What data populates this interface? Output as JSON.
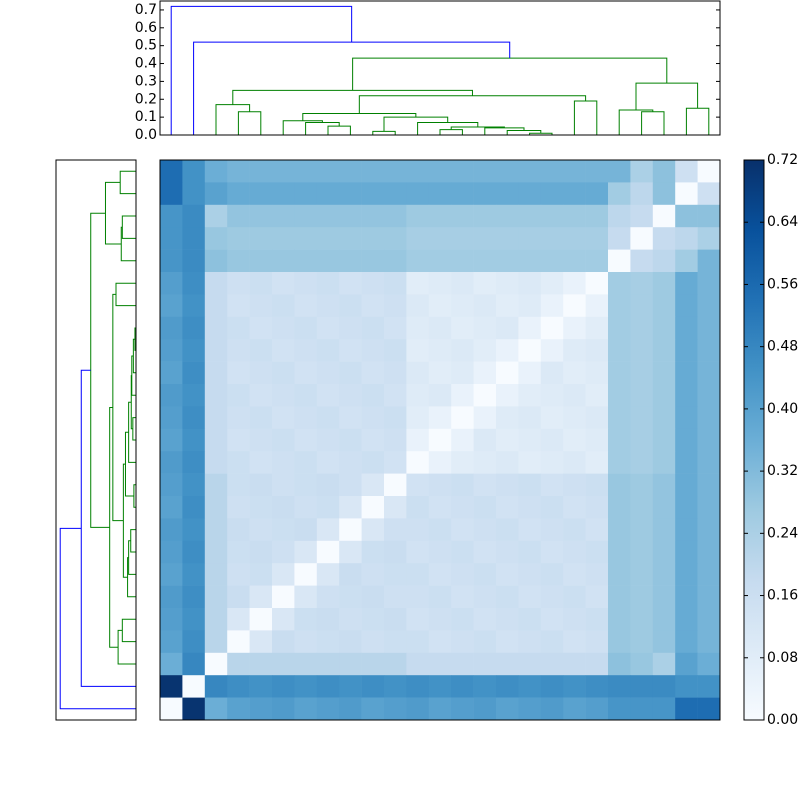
{
  "chart_data": {
    "type": "clustermap",
    "colormap": "Blues",
    "clim": [
      0,
      0.72
    ],
    "cticks": [
      {
        "value": 0,
        "label": "0.00"
      },
      0.08,
      0.16,
      0.24,
      0.32,
      {
        "value": 0.4,
        "label": "0.40"
      },
      0.48,
      0.56,
      0.64,
      0.72
    ],
    "z": [
      [
        0.55,
        0.45,
        0.36,
        0.34,
        0.34,
        0.34,
        0.34,
        0.34,
        0.34,
        0.34,
        0.34,
        0.34,
        0.34,
        0.34,
        0.34,
        0.34,
        0.34,
        0.34,
        0.34,
        0.34,
        0.34,
        0.24,
        0.3,
        0.15,
        0
      ],
      [
        0.55,
        0.45,
        0.4,
        0.37,
        0.37,
        0.37,
        0.37,
        0.37,
        0.37,
        0.37,
        0.37,
        0.37,
        0.37,
        0.37,
        0.37,
        0.37,
        0.37,
        0.37,
        0.37,
        0.37,
        0.26,
        0.2,
        0.3,
        0,
        0.15
      ],
      [
        0.44,
        0.47,
        0.24,
        0.29,
        0.29,
        0.29,
        0.29,
        0.29,
        0.29,
        0.29,
        0.29,
        0.27,
        0.27,
        0.27,
        0.27,
        0.27,
        0.27,
        0.27,
        0.27,
        0.27,
        0.2,
        0.18,
        0,
        0.3,
        0.3
      ],
      [
        0.44,
        0.47,
        0.28,
        0.27,
        0.27,
        0.27,
        0.27,
        0.27,
        0.27,
        0.27,
        0.27,
        0.25,
        0.25,
        0.25,
        0.25,
        0.25,
        0.25,
        0.25,
        0.25,
        0.25,
        0.18,
        0,
        0.18,
        0.2,
        0.24
      ],
      [
        0.44,
        0.47,
        0.3,
        0.28,
        0.28,
        0.28,
        0.28,
        0.28,
        0.28,
        0.28,
        0.28,
        0.26,
        0.26,
        0.26,
        0.26,
        0.26,
        0.26,
        0.26,
        0.26,
        0.26,
        0,
        0.18,
        0.2,
        0.26,
        0.34
      ],
      [
        0.41,
        0.46,
        0.18,
        0.15,
        0.16,
        0.14,
        0.15,
        0.16,
        0.14,
        0.15,
        0.16,
        0.08,
        0.09,
        0.1,
        0.08,
        0.09,
        0.1,
        0.08,
        0.05,
        0,
        0.26,
        0.25,
        0.27,
        0.37,
        0.34
      ],
      [
        0.4,
        0.45,
        0.18,
        0.14,
        0.15,
        0.16,
        0.14,
        0.15,
        0.16,
        0.14,
        0.15,
        0.1,
        0.08,
        0.09,
        0.1,
        0.08,
        0.09,
        0.05,
        0,
        0.05,
        0.26,
        0.25,
        0.27,
        0.37,
        0.34
      ],
      [
        0.42,
        0.46,
        0.18,
        0.16,
        0.14,
        0.15,
        0.16,
        0.14,
        0.15,
        0.16,
        0.14,
        0.09,
        0.1,
        0.08,
        0.09,
        0.1,
        0.05,
        0,
        0.05,
        0.08,
        0.26,
        0.25,
        0.27,
        0.37,
        0.34
      ],
      [
        0.41,
        0.45,
        0.18,
        0.15,
        0.16,
        0.14,
        0.15,
        0.16,
        0.14,
        0.15,
        0.16,
        0.08,
        0.09,
        0.1,
        0.08,
        0.05,
        0,
        0.05,
        0.09,
        0.1,
        0.26,
        0.25,
        0.27,
        0.37,
        0.34
      ],
      [
        0.4,
        0.46,
        0.18,
        0.14,
        0.15,
        0.16,
        0.14,
        0.15,
        0.16,
        0.14,
        0.15,
        0.1,
        0.08,
        0.09,
        0.05,
        0,
        0.05,
        0.1,
        0.08,
        0.09,
        0.26,
        0.25,
        0.27,
        0.37,
        0.34
      ],
      [
        0.42,
        0.45,
        0.18,
        0.16,
        0.14,
        0.15,
        0.16,
        0.14,
        0.15,
        0.16,
        0.14,
        0.09,
        0.1,
        0.05,
        0,
        0.05,
        0.08,
        0.09,
        0.1,
        0.08,
        0.26,
        0.25,
        0.27,
        0.37,
        0.34
      ],
      [
        0.41,
        0.46,
        0.18,
        0.15,
        0.16,
        0.14,
        0.15,
        0.16,
        0.14,
        0.15,
        0.16,
        0.08,
        0.05,
        0,
        0.05,
        0.09,
        0.1,
        0.08,
        0.09,
        0.1,
        0.26,
        0.25,
        0.27,
        0.37,
        0.34
      ],
      [
        0.4,
        0.45,
        0.18,
        0.14,
        0.15,
        0.16,
        0.14,
        0.15,
        0.16,
        0.14,
        0.15,
        0.05,
        0,
        0.05,
        0.1,
        0.08,
        0.09,
        0.1,
        0.08,
        0.09,
        0.26,
        0.25,
        0.27,
        0.37,
        0.34
      ],
      [
        0.42,
        0.46,
        0.18,
        0.16,
        0.14,
        0.15,
        0.16,
        0.14,
        0.15,
        0.16,
        0.14,
        0,
        0.05,
        0.08,
        0.09,
        0.1,
        0.08,
        0.09,
        0.1,
        0.08,
        0.26,
        0.25,
        0.27,
        0.37,
        0.34
      ],
      [
        0.41,
        0.45,
        0.21,
        0.16,
        0.17,
        0.15,
        0.16,
        0.17,
        0.15,
        0.11,
        0,
        0.14,
        0.15,
        0.16,
        0.14,
        0.15,
        0.16,
        0.14,
        0.15,
        0.16,
        0.28,
        0.27,
        0.29,
        0.37,
        0.34
      ],
      [
        0.4,
        0.46,
        0.21,
        0.15,
        0.16,
        0.17,
        0.15,
        0.16,
        0.11,
        0,
        0.11,
        0.16,
        0.14,
        0.15,
        0.16,
        0.14,
        0.15,
        0.16,
        0.14,
        0.15,
        0.28,
        0.27,
        0.29,
        0.37,
        0.34
      ],
      [
        0.42,
        0.45,
        0.21,
        0.17,
        0.15,
        0.16,
        0.17,
        0.11,
        0,
        0.11,
        0.15,
        0.15,
        0.16,
        0.14,
        0.15,
        0.16,
        0.14,
        0.15,
        0.16,
        0.14,
        0.28,
        0.27,
        0.29,
        0.37,
        0.34
      ],
      [
        0.41,
        0.46,
        0.21,
        0.16,
        0.17,
        0.15,
        0.11,
        0,
        0.11,
        0.16,
        0.17,
        0.14,
        0.15,
        0.16,
        0.14,
        0.15,
        0.16,
        0.14,
        0.15,
        0.16,
        0.28,
        0.27,
        0.29,
        0.37,
        0.34
      ],
      [
        0.4,
        0.45,
        0.21,
        0.15,
        0.16,
        0.11,
        0,
        0.11,
        0.17,
        0.15,
        0.16,
        0.16,
        0.14,
        0.15,
        0.16,
        0.14,
        0.15,
        0.16,
        0.14,
        0.15,
        0.28,
        0.27,
        0.29,
        0.37,
        0.34
      ],
      [
        0.42,
        0.46,
        0.21,
        0.17,
        0.11,
        0,
        0.11,
        0.15,
        0.16,
        0.17,
        0.15,
        0.15,
        0.16,
        0.14,
        0.15,
        0.16,
        0.14,
        0.15,
        0.16,
        0.14,
        0.28,
        0.27,
        0.29,
        0.37,
        0.34
      ],
      [
        0.41,
        0.45,
        0.21,
        0.11,
        0,
        0.11,
        0.16,
        0.17,
        0.15,
        0.16,
        0.17,
        0.14,
        0.15,
        0.16,
        0.14,
        0.15,
        0.16,
        0.14,
        0.15,
        0.16,
        0.28,
        0.27,
        0.29,
        0.37,
        0.34
      ],
      [
        0.4,
        0.46,
        0.21,
        0,
        0.11,
        0.17,
        0.15,
        0.16,
        0.17,
        0.15,
        0.16,
        0.16,
        0.14,
        0.15,
        0.16,
        0.14,
        0.15,
        0.16,
        0.14,
        0.15,
        0.28,
        0.27,
        0.29,
        0.37,
        0.34
      ],
      [
        0.36,
        0.48,
        0,
        0.21,
        0.21,
        0.21,
        0.21,
        0.21,
        0.21,
        0.21,
        0.21,
        0.18,
        0.18,
        0.18,
        0.18,
        0.18,
        0.18,
        0.18,
        0.18,
        0.18,
        0.3,
        0.28,
        0.24,
        0.4,
        0.36
      ],
      [
        0.71,
        0,
        0.48,
        0.46,
        0.45,
        0.46,
        0.45,
        0.46,
        0.45,
        0.46,
        0.45,
        0.46,
        0.45,
        0.46,
        0.45,
        0.46,
        0.45,
        0.46,
        0.45,
        0.46,
        0.47,
        0.47,
        0.47,
        0.45,
        0.45
      ],
      [
        0,
        0.71,
        0.36,
        0.4,
        0.41,
        0.42,
        0.4,
        0.41,
        0.42,
        0.4,
        0.41,
        0.42,
        0.4,
        0.41,
        0.42,
        0.4,
        0.41,
        0.42,
        0.4,
        0.41,
        0.44,
        0.44,
        0.44,
        0.55,
        0.55
      ]
    ],
    "dendrogram": {
      "ylim": [
        0,
        0.75
      ],
      "yticks": [
        {
          "value": 0,
          "label": "0.0"
        },
        0.1,
        0.2,
        0.3,
        0.4,
        0.5,
        0.6,
        0.7
      ],
      "left_xlim": [
        0.76,
        0
      ],
      "links": [
        [
          7,
          8,
          0.05,
          "#008000"
        ],
        [
          6,
          25,
          0.07,
          "#008000"
        ],
        [
          5,
          26,
          0.08,
          "#008000"
        ],
        [
          9,
          10,
          0.02,
          "#008000"
        ],
        [
          12,
          13,
          0.03,
          "#008000"
        ],
        [
          16,
          17,
          0.01,
          "#008000"
        ],
        [
          15,
          30,
          0.025,
          "#008000"
        ],
        [
          14,
          31,
          0.04,
          "#008000"
        ],
        [
          29,
          32,
          0.045,
          "#008000"
        ],
        [
          11,
          33,
          0.07,
          "#008000"
        ],
        [
          28,
          34,
          0.1,
          "#008000"
        ],
        [
          27,
          35,
          0.12,
          "#008000"
        ],
        [
          18,
          19,
          0.19,
          "#008000"
        ],
        [
          36,
          37,
          0.22,
          "#008000"
        ],
        [
          3,
          4,
          0.13,
          "#008000"
        ],
        [
          2,
          39,
          0.17,
          "#008000"
        ],
        [
          40,
          38,
          0.25,
          "#008000"
        ],
        [
          21,
          22,
          0.13,
          "#008000"
        ],
        [
          20,
          42,
          0.14,
          "#008000"
        ],
        [
          23,
          24,
          0.15,
          "#008000"
        ],
        [
          43,
          44,
          0.29,
          "#008000"
        ],
        [
          41,
          45,
          0.43,
          "#008000"
        ],
        [
          1,
          46,
          0.52,
          "#0000ff"
        ],
        [
          0,
          47,
          0.72,
          "#0000ff"
        ]
      ]
    }
  }
}
